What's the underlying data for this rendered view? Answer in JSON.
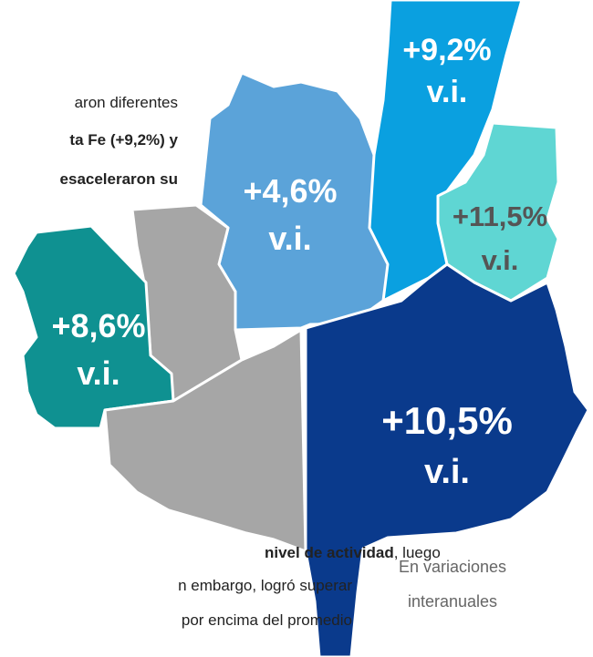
{
  "text_top": [
    "aron  diferentes",
    "ta Fe (+9,2%) y",
    "esaceleraron su"
  ],
  "text_bottom": [
    {
      "bold": "nivel de actividad",
      "normal": ", luego"
    },
    "n embargo, logró superar",
    "por encima del promedio"
  ],
  "regions": [
    {
      "value": "+9,2%",
      "unit": "v.i."
    },
    {
      "value": "+11,5%",
      "unit": "v.i."
    },
    {
      "value": "+4,6%",
      "unit": "v.i."
    },
    {
      "value": "+8,6%",
      "unit": "v.i."
    },
    {
      "value": "+10,5%",
      "unit": "v.i."
    }
  ],
  "note": [
    "En variaciones",
    "interanuales"
  ]
}
